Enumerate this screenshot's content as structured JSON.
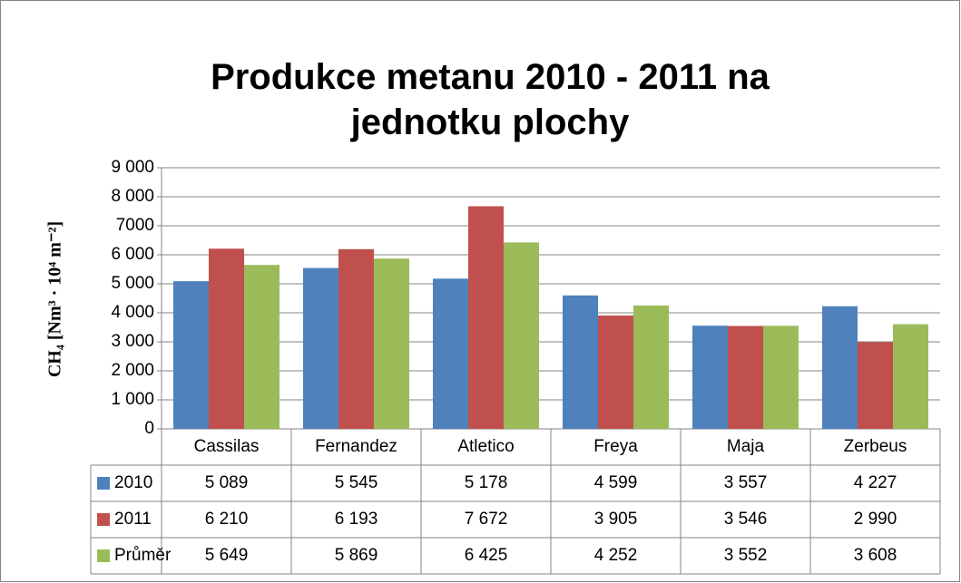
{
  "chart_data": {
    "type": "bar",
    "title": "Produkce metanu 2010 - 2011 na jednotku plochy",
    "y_label": "CH₄ [Nm³ · 10⁴ m⁻²]",
    "categories": [
      "Cassilas",
      "Fernandez",
      "Atletico",
      "Freya",
      "Maja",
      "Zerbeus"
    ],
    "series": [
      {
        "name": "2010",
        "color": "#4f81bd",
        "values": [
          5089,
          5545,
          5178,
          4599,
          3557,
          4227
        ],
        "value_labels": [
          "5 089",
          "5 545",
          "5 178",
          "4 599",
          "3 557",
          "4 227"
        ]
      },
      {
        "name": "2011",
        "color": "#c0504d",
        "values": [
          6210,
          6193,
          7672,
          3905,
          3546,
          2990
        ],
        "value_labels": [
          "6 210",
          "6 193",
          "7 672",
          "3 905",
          "3 546",
          "2 990"
        ]
      },
      {
        "name": "Průměr",
        "color": "#9bbb59",
        "values": [
          5649,
          5869,
          6425,
          4252,
          3552,
          3608
        ],
        "value_labels": [
          "5 649",
          "5 869",
          "6 425",
          "4 252",
          "3 552",
          "3 608"
        ]
      }
    ],
    "ylim": [
      0,
      9000
    ],
    "yticks": [
      0,
      {
        "value": 1000,
        "label": "1 000"
      },
      {
        "value": 2000,
        "label": "2 000"
      },
      {
        "value": 3000,
        "label": "3 000"
      },
      {
        "value": 4000,
        "label": "4 000"
      },
      {
        "value": 5000,
        "label": "5 000"
      },
      {
        "value": 6000,
        "label": "6 000"
      },
      {
        "value": 7000,
        "label": "7000"
      },
      {
        "value": 8000,
        "label": "8 000"
      },
      {
        "value": 9000,
        "label": "9 000"
      }
    ],
    "grid": true
  }
}
